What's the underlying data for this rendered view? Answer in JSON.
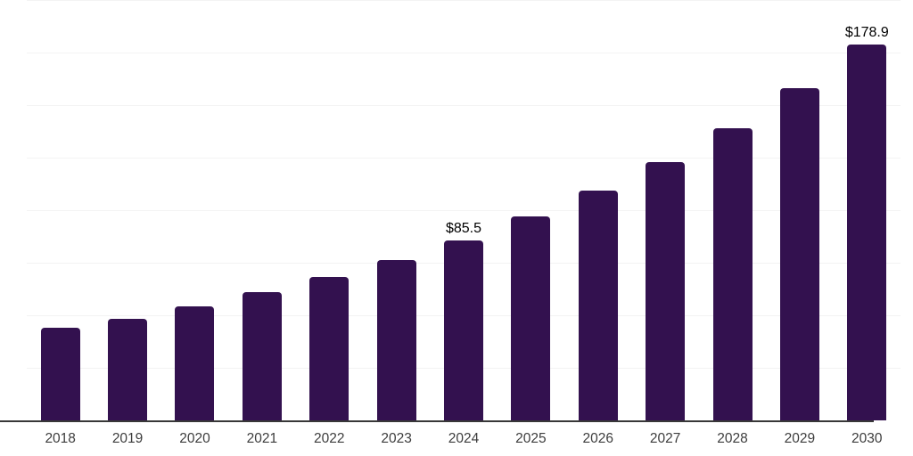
{
  "chart_data": {
    "type": "bar",
    "title": "",
    "xlabel": "",
    "ylabel": "",
    "categories": [
      "2018",
      "2019",
      "2020",
      "2021",
      "2022",
      "2023",
      "2024",
      "2025",
      "2026",
      "2027",
      "2028",
      "2029",
      "2030"
    ],
    "values": [
      43.9,
      48.5,
      54.2,
      61.2,
      68.2,
      76.2,
      85.5,
      97.0,
      109.3,
      122.9,
      139.2,
      158.0,
      178.9
    ],
    "data_labels": [
      {
        "category": "2024",
        "text": "$85.5"
      },
      {
        "category": "2030",
        "text": "$178.9"
      }
    ],
    "ylim": [
      0,
      200
    ],
    "grid_step": 25,
    "grid": "horizontal",
    "y_tick_labels_visible": false,
    "legend_position": "none",
    "colors": {
      "bar": "#33114f",
      "gridline": "#f3f3f3",
      "axis_line": "#383838",
      "x_tick_label": "#3d3d3d",
      "data_label": "#000000",
      "background": "#ffffff"
    }
  }
}
